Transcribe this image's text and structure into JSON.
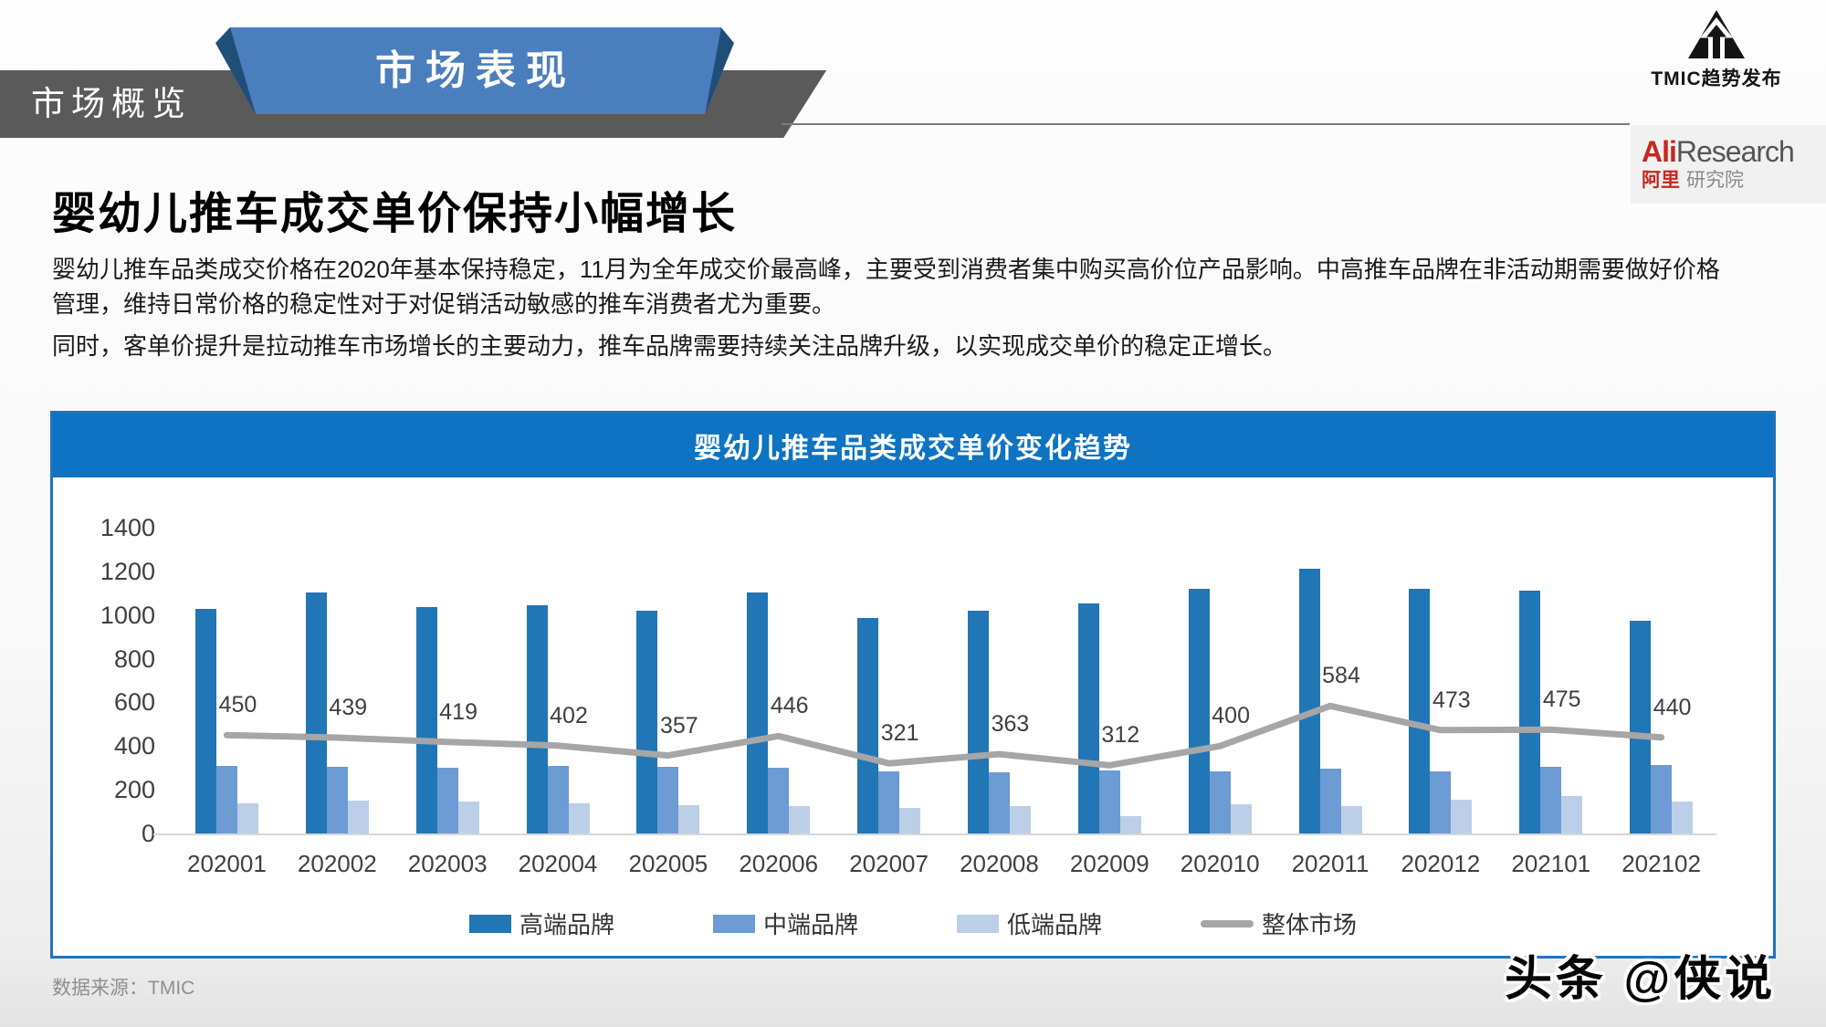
{
  "header": {
    "tab_gray": "市场概览",
    "tab_blue": "市场表现",
    "tmic_text": "TMIC趋势发布",
    "ali": {
      "red": "Ali",
      "research": "Research",
      "cn_red": "阿里",
      "cn_gray": "研究院"
    }
  },
  "content": {
    "title": "婴幼儿推车成交单价保持小幅增长",
    "paragraph1": "婴幼儿推车品类成交价格在2020年基本保持稳定，11月为全年成交价最高峰，主要受到消费者集中购买高价位产品影响。中高推车品牌在非活动期需要做好价格管理，维持日常价格的稳定性对于对促销活动敏感的推车消费者尤为重要。",
    "paragraph2": "同时，客单价提升是拉动推车市场增长的主要动力，推车品牌需要持续关注品牌升级，以实现成交单价的稳定正增长。"
  },
  "chart_data": {
    "type": "bar",
    "title": "婴幼儿推车品类成交单价变化趋势",
    "categories": [
      "202001",
      "202002",
      "202003",
      "202004",
      "202005",
      "202006",
      "202007",
      "202008",
      "202009",
      "202010",
      "202011",
      "202012",
      "202101",
      "202102"
    ],
    "series": [
      {
        "name": "高端品牌",
        "kind": "bar",
        "color": "#2176b5",
        "values": [
          1030,
          1105,
          1035,
          1045,
          1020,
          1105,
          985,
          1020,
          1055,
          1120,
          1210,
          1120,
          1110,
          975
        ]
      },
      {
        "name": "中端品牌",
        "kind": "bar",
        "color": "#6d9bd3",
        "values": [
          310,
          305,
          300,
          310,
          305,
          300,
          285,
          280,
          290,
          285,
          295,
          285,
          305,
          315
        ]
      },
      {
        "name": "低端品牌",
        "kind": "bar",
        "color": "#bdcfe8",
        "values": [
          140,
          150,
          145,
          140,
          130,
          125,
          115,
          125,
          80,
          135,
          125,
          155,
          170,
          145
        ]
      },
      {
        "name": "整体市场",
        "kind": "line",
        "color": "#a6a6a6",
        "point_labels": true,
        "values": [
          450,
          439,
          419,
          402,
          357,
          446,
          321,
          363,
          312,
          400,
          584,
          473,
          475,
          440
        ]
      }
    ],
    "ylim": [
      0,
      1400
    ],
    "yticks": [
      0,
      200,
      400,
      600,
      800,
      1000,
      1200,
      1400
    ],
    "grid": false,
    "legend_position": "bottom"
  },
  "footer": {
    "source": "数据来源：TMIC",
    "watermark": "头条 @侠说"
  }
}
